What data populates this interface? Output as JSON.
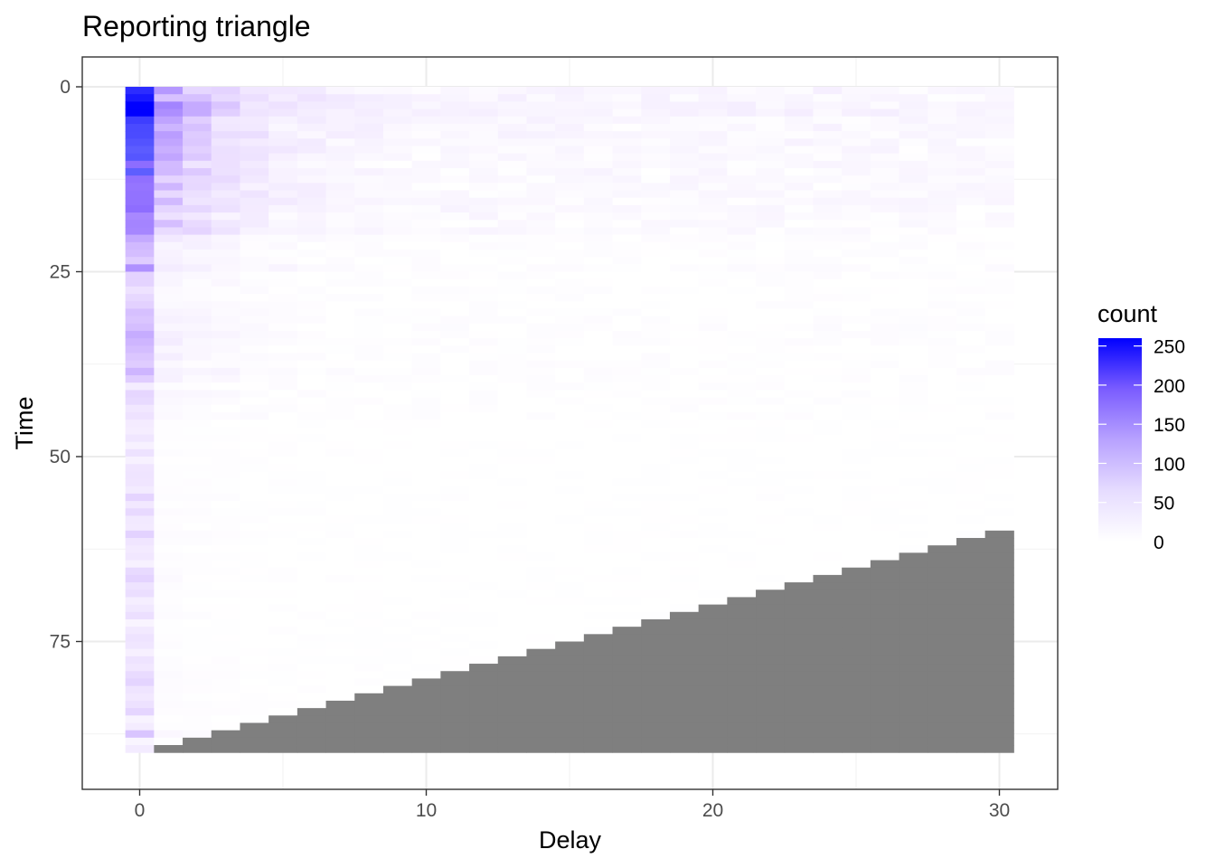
{
  "chart_data": {
    "type": "heatmap",
    "title": "Reporting triangle",
    "xlabel": "Delay",
    "ylabel": "Time",
    "x_ticks": [
      0,
      10,
      20,
      30
    ],
    "y_ticks": [
      0,
      25,
      50,
      75
    ],
    "xlim": [
      -2,
      32
    ],
    "ylim": [
      94.5,
      -4
    ],
    "y_reversed": true,
    "grid": true,
    "delays": 31,
    "time_points": 90,
    "time_range": [
      0,
      89
    ],
    "delay_range": [
      0,
      30
    ],
    "fill_scale": {
      "low": "#ffffff",
      "high": "#0000ff",
      "na_color": "#7f7f7f",
      "limits": [
        0,
        260
      ]
    },
    "legend": {
      "title": "count",
      "breaks": [
        0,
        50,
        100,
        150,
        200,
        250
      ],
      "position": "right"
    },
    "sample_values": [
      {
        "time": 3,
        "delay": 0,
        "count": 260
      },
      {
        "time": 3,
        "delay": 1,
        "count": 130
      },
      {
        "time": 9,
        "delay": 0,
        "count": 180
      },
      {
        "time": 16,
        "delay": 0,
        "count": 150
      },
      {
        "time": 24,
        "delay": 0,
        "count": 100
      },
      {
        "time": 38,
        "delay": 0,
        "count": 70
      },
      {
        "time": 60,
        "delay": 0,
        "count": 35
      },
      {
        "time": 87,
        "delay": 0,
        "count": 45
      }
    ],
    "missing_region": "cells with time + delay > 89 are unobserved (grey)"
  }
}
